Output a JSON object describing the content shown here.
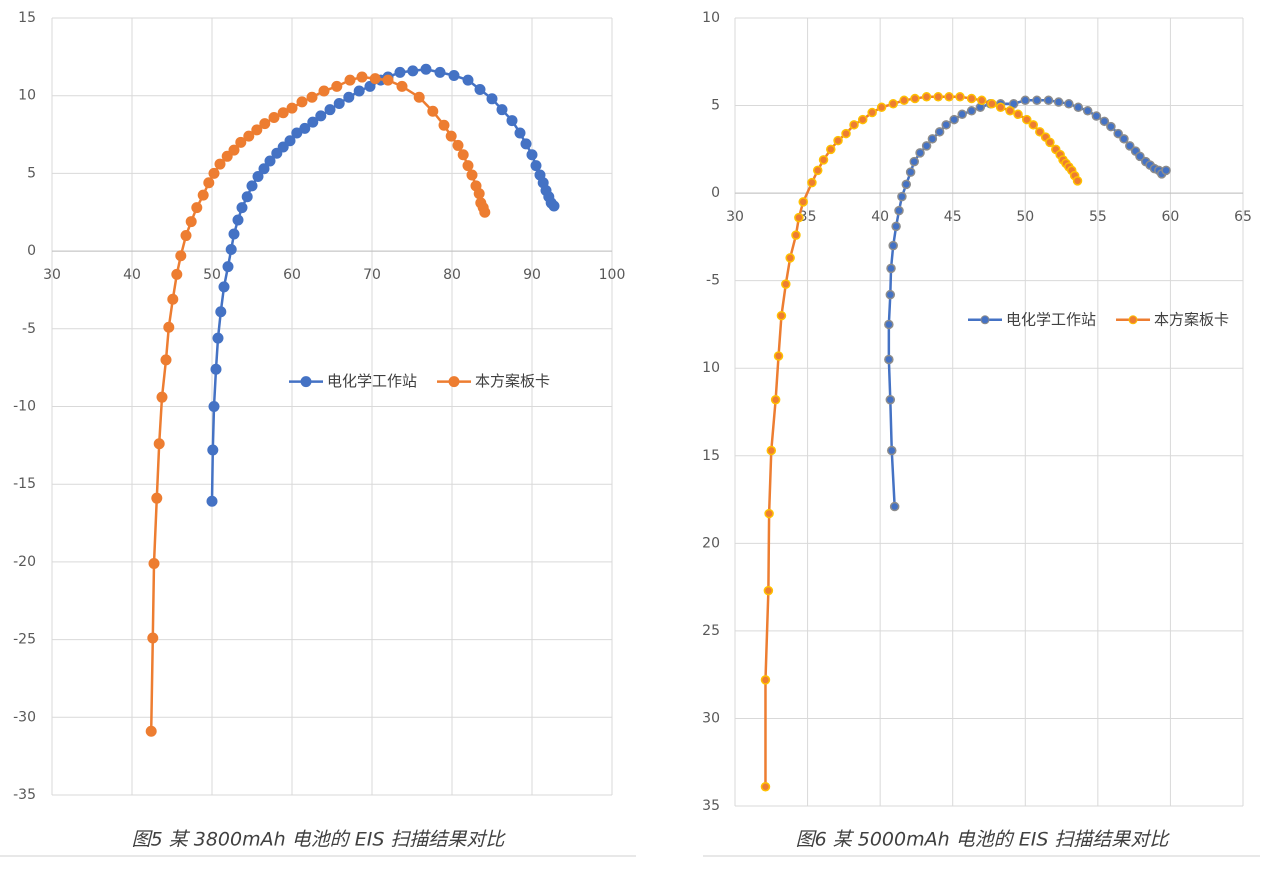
{
  "chart_data": [
    {
      "type": "scatter",
      "title": "图5 某 3800mAh 电池的 EIS 扫描结果对比",
      "xlim": [
        30,
        100
      ],
      "xticks": [
        30,
        40,
        50,
        60,
        70,
        80,
        90,
        100
      ],
      "ylim": [
        -35,
        15
      ],
      "yticks": [
        15,
        10,
        5,
        0,
        -5,
        -10,
        -15,
        -20,
        -25,
        -30,
        -35
      ],
      "grid": true,
      "legend": "center right",
      "series": [
        {
          "name": "电化学工作站",
          "color": "#4472c4",
          "x": [
            50,
            50.1,
            50.25,
            50.5,
            50.75,
            51.1,
            51.5,
            52,
            52.4,
            52.75,
            53.25,
            53.75,
            54.4,
            55,
            55.75,
            56.5,
            57.25,
            58.1,
            58.9,
            59.75,
            60.6,
            61.6,
            62.6,
            63.6,
            64.75,
            65.9,
            67.1,
            68.4,
            69.75,
            71.1,
            72,
            73.5,
            75.1,
            76.75,
            78.5,
            80.25,
            82,
            83.5,
            85,
            86.25,
            87.5,
            88.5,
            89.25,
            90,
            90.5,
            91,
            91.4,
            91.75,
            92.1,
            92.4,
            92.75
          ],
          "values": [
            -16.1,
            -12.8,
            -10,
            -7.6,
            -5.6,
            -3.9,
            -2.3,
            -1.0,
            0.1,
            1.1,
            2.0,
            2.8,
            3.5,
            4.2,
            4.8,
            5.3,
            5.8,
            6.3,
            6.7,
            7.1,
            7.6,
            7.9,
            8.3,
            8.7,
            9.1,
            9.5,
            9.9,
            10.3,
            10.6,
            11.0,
            11.2,
            11.5,
            11.6,
            11.7,
            11.5,
            11.3,
            11.0,
            10.4,
            9.8,
            9.1,
            8.4,
            7.6,
            6.9,
            6.2,
            5.5,
            4.9,
            4.4,
            3.9,
            3.5,
            3.1,
            2.9
          ]
        },
        {
          "name": "本方案板卡",
          "color": "#ed7d31",
          "x": [
            42.4,
            42.6,
            42.75,
            43.1,
            43.4,
            43.75,
            44.25,
            44.6,
            45.1,
            45.6,
            46.1,
            46.75,
            47.4,
            48.1,
            48.9,
            49.6,
            50.25,
            51,
            51.9,
            52.75,
            53.6,
            54.6,
            55.6,
            56.6,
            57.75,
            58.9,
            60,
            61.25,
            62.5,
            64,
            65.6,
            67.25,
            68.75,
            70.4,
            72,
            73.75,
            75.9,
            77.6,
            79,
            79.9,
            80.75,
            81.4,
            82,
            82.5,
            83,
            83.4,
            83.6,
            83.9,
            84.1
          ],
          "values": [
            -30.9,
            -24.9,
            -20.1,
            -15.9,
            -12.4,
            -9.4,
            -7.0,
            -4.9,
            -3.1,
            -1.5,
            -0.3,
            1.0,
            1.9,
            2.8,
            3.6,
            4.4,
            5.0,
            5.6,
            6.1,
            6.5,
            7.0,
            7.4,
            7.8,
            8.2,
            8.6,
            8.9,
            9.2,
            9.6,
            9.9,
            10.3,
            10.6,
            11.0,
            11.2,
            11.1,
            11.0,
            10.6,
            9.9,
            9.0,
            8.1,
            7.4,
            6.8,
            6.2,
            5.5,
            4.9,
            4.2,
            3.7,
            3.1,
            2.8,
            2.5
          ]
        }
      ]
    },
    {
      "type": "scatter",
      "title": "图6 某 5000mAh 电池的 EIS 扫描结果对比",
      "xlim": [
        30,
        65
      ],
      "xticks": [
        30,
        35,
        40,
        45,
        50,
        55,
        60,
        65
      ],
      "ylim": [
        -35,
        10
      ],
      "yticks": [
        10,
        5,
        0,
        -5,
        {
          "value": -10,
          "label": "10"
        },
        {
          "value": -15,
          "label": "15"
        },
        {
          "value": -20,
          "label": "20"
        },
        {
          "value": -25,
          "label": "25"
        },
        {
          "value": -30,
          "label": "30"
        },
        {
          "value": -35,
          "label": "35"
        }
      ],
      "grid": true,
      "legend": "center right",
      "series": [
        {
          "name": "电化学工作站",
          "color": "#4472c4",
          "marker_edge_color": "#8c8c8c",
          "x": [
            41.0,
            40.8,
            40.7,
            40.6,
            40.6,
            40.7,
            40.75,
            40.9,
            41.1,
            41.3,
            41.5,
            41.8,
            42.1,
            42.35,
            42.75,
            43.2,
            43.6,
            44.1,
            44.55,
            45.1,
            45.65,
            46.3,
            46.9,
            47.6,
            48.3,
            49.2,
            50,
            50.8,
            51.6,
            52.3,
            53,
            53.65,
            54.3,
            54.9,
            55.45,
            55.9,
            56.4,
            56.8,
            57.2,
            57.6,
            57.9,
            58.3,
            58.6,
            58.9,
            59.2,
            59.4,
            59.7
          ],
          "values": [
            -17.9,
            -14.7,
            -11.8,
            -9.5,
            -7.5,
            -5.8,
            -4.3,
            -3.0,
            -1.9,
            -1.0,
            -0.2,
            0.5,
            1.2,
            1.8,
            2.3,
            2.7,
            3.1,
            3.5,
            3.9,
            4.2,
            4.5,
            4.7,
            4.9,
            5.1,
            5.1,
            5.1,
            5.3,
            5.3,
            5.3,
            5.2,
            5.1,
            4.9,
            4.7,
            4.4,
            4.1,
            3.8,
            3.4,
            3.1,
            2.7,
            2.4,
            2.1,
            1.8,
            1.6,
            1.4,
            1.3,
            1.1,
            1.3
          ]
        },
        {
          "name": "本方案板卡",
          "color": "#ed7d31",
          "marker_edge_color": "#ffc000",
          "x": [
            32.1,
            32.1,
            32.3,
            32.35,
            32.5,
            32.8,
            33.0,
            33.2,
            33.5,
            33.8,
            34.2,
            34.4,
            34.7,
            35.3,
            35.7,
            36.1,
            36.6,
            37.1,
            37.65,
            38.2,
            38.8,
            39.45,
            40.1,
            40.9,
            41.65,
            42.4,
            43.2,
            44,
            44.75,
            45.5,
            46.3,
            47,
            47.7,
            48.3,
            48.95,
            49.5,
            50.1,
            50.55,
            51,
            51.4,
            51.7,
            52.1,
            52.4,
            52.6,
            52.8,
            53.0,
            53.2,
            53.4,
            53.6
          ],
          "values": [
            -33.9,
            -27.8,
            -22.7,
            -18.3,
            -14.7,
            -11.8,
            -9.3,
            -7.0,
            -5.2,
            -3.7,
            -2.4,
            -1.4,
            -0.5,
            0.6,
            1.3,
            1.9,
            2.5,
            3.0,
            3.4,
            3.9,
            4.2,
            4.6,
            4.9,
            5.1,
            5.3,
            5.4,
            5.5,
            5.5,
            5.5,
            5.5,
            5.4,
            5.3,
            5.1,
            4.9,
            4.7,
            4.5,
            4.2,
            3.9,
            3.5,
            3.2,
            2.9,
            2.5,
            2.2,
            1.9,
            1.7,
            1.5,
            1.3,
            1.0,
            0.7
          ]
        }
      ]
    }
  ]
}
